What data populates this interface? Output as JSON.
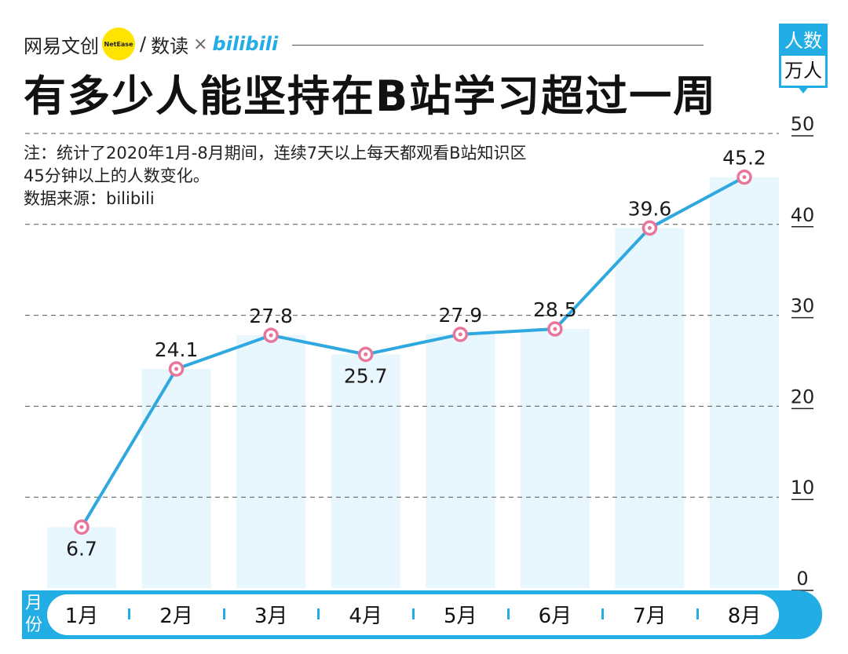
{
  "brand": {
    "netease": "网易文创",
    "badge": "NetEase",
    "slash": "/",
    "shudu": "数读",
    "times": "×",
    "bilibili": "bilibili"
  },
  "title": "有多少人能坚持在B站学习超过一周",
  "notes": [
    "注：统计了2020年1月-8月期间，连续7天以上每天都观看B站知识区",
    "45分钟以上的人数变化。",
    "数据来源：bilibili"
  ],
  "unit": {
    "line1": "人数",
    "line2": "万人"
  },
  "xaxis_label": "月份",
  "colors": {
    "accent": "#23ade5",
    "bar_fill": "#e8f6fd",
    "line": "#2ea8de",
    "marker": "#e8769a",
    "grid": "#555555"
  },
  "chart_data": {
    "type": "line",
    "title": "有多少人能坚持在B站学习超过一周",
    "xlabel": "月份",
    "ylabel": "人数 万人",
    "categories": [
      "1月",
      "2月",
      "3月",
      "4月",
      "5月",
      "6月",
      "7月",
      "8月"
    ],
    "series": [
      {
        "values": [
          6.7,
          24.1,
          27.8,
          25.7,
          27.9,
          28.5,
          39.6,
          45.2
        ]
      }
    ],
    "ylim": [
      0,
      50
    ],
    "yticks": [
      0,
      10,
      20,
      30,
      40,
      50
    ],
    "grid": true,
    "bars_behind_line": true,
    "legend": "none"
  }
}
